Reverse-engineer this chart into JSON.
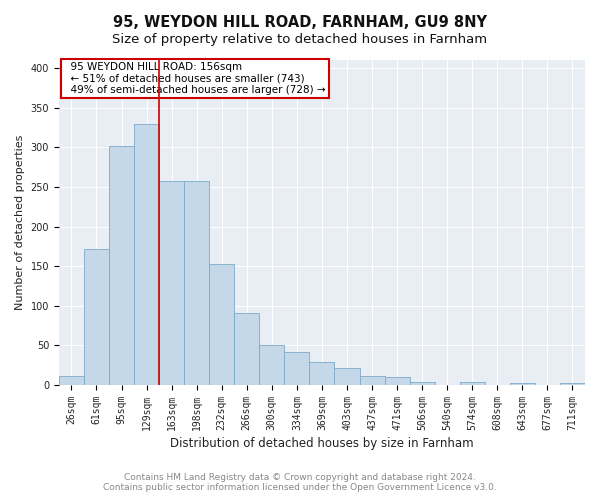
{
  "title": "95, WEYDON HILL ROAD, FARNHAM, GU9 8NY",
  "subtitle": "Size of property relative to detached houses in Farnham",
  "xlabel": "Distribution of detached houses by size in Farnham",
  "ylabel": "Number of detached properties",
  "bar_labels": [
    "26sqm",
    "61sqm",
    "95sqm",
    "129sqm",
    "163sqm",
    "198sqm",
    "232sqm",
    "266sqm",
    "300sqm",
    "334sqm",
    "369sqm",
    "403sqm",
    "437sqm",
    "471sqm",
    "506sqm",
    "540sqm",
    "574sqm",
    "608sqm",
    "643sqm",
    "677sqm",
    "711sqm"
  ],
  "bar_heights": [
    11,
    172,
    301,
    329,
    258,
    258,
    153,
    91,
    50,
    42,
    29,
    21,
    11,
    10,
    4,
    0,
    4,
    0,
    3,
    0,
    3
  ],
  "bar_color": "#c5d8ea",
  "bar_edge_color": "#7aaac8",
  "vline_x": 3.5,
  "vline_color": "#cc0000",
  "annotation_title": "95 WEYDON HILL ROAD: 156sqm",
  "annotation_line1": "← 51% of detached houses are smaller (743)",
  "annotation_line2": "49% of semi-detached houses are larger (728) →",
  "annotation_box_color": "#ffffff",
  "annotation_box_edge": "#cc0000",
  "ylim": [
    0,
    410
  ],
  "yticks": [
    0,
    50,
    100,
    150,
    200,
    250,
    300,
    350,
    400
  ],
  "footer_line1": "Contains HM Land Registry data © Crown copyright and database right 2024.",
  "footer_line2": "Contains public sector information licensed under the Open Government Licence v3.0.",
  "bg_color": "#ffffff",
  "plot_bg_color": "#e8eef4",
  "grid_color": "#ffffff",
  "title_fontsize": 10.5,
  "subtitle_fontsize": 9.5,
  "xlabel_fontsize": 8.5,
  "ylabel_fontsize": 8,
  "footer_fontsize": 6.5,
  "tick_fontsize": 7,
  "annotation_fontsize": 7.5
}
